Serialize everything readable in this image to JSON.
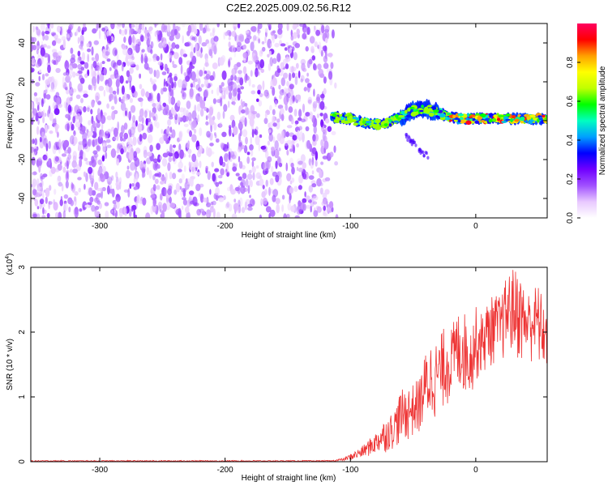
{
  "title": "C2E2.2025.009.02.56.R12",
  "chart_data": [
    {
      "type": "heatmap",
      "xlabel": "Height of straight line (km)",
      "ylabel": "Frequency (Hz)",
      "xlim": [
        -355,
        57
      ],
      "ylim": [
        -50,
        50
      ],
      "xticks": [
        -300,
        -200,
        -100,
        0
      ],
      "yticks": [
        -40,
        -20,
        0,
        20,
        40
      ],
      "grid": false,
      "colorbar": {
        "label": "Normalized spectral amplitude",
        "range": [
          0,
          1
        ],
        "ticks": [
          0.0,
          0.2,
          0.4,
          0.6,
          0.8
        ],
        "colormap": [
          "#ffffff",
          "#e8c8ff",
          "#a050ff",
          "#7000ff",
          "#0000ff",
          "#00a0ff",
          "#00ffc0",
          "#00ff00",
          "#c0ff00",
          "#ffff00",
          "#ffa000",
          "#ff0000",
          "#ff0060"
        ]
      },
      "regions": [
        {
          "x": [
            -355,
            -115
          ],
          "freq": [
            -50,
            50
          ],
          "amplitude": [
            0.05,
            0.18
          ],
          "pattern": "broadband noise"
        },
        {
          "x": [
            -115,
            57
          ],
          "freq": [
            -6,
            6
          ],
          "amplitude": [
            0.3,
            0.95
          ],
          "pattern": "narrow band near 0 Hz"
        }
      ],
      "band_centre": [
        {
          "x": -115,
          "f": 2
        },
        {
          "x": -100,
          "f": 1
        },
        {
          "x": -90,
          "f": -1
        },
        {
          "x": -80,
          "f": -2
        },
        {
          "x": -70,
          "f": -1
        },
        {
          "x": -60,
          "f": 2
        },
        {
          "x": -50,
          "f": 5
        },
        {
          "x": -40,
          "f": 6
        },
        {
          "x": -30,
          "f": 4
        },
        {
          "x": -20,
          "f": 2
        },
        {
          "x": -10,
          "f": 1
        },
        {
          "x": 0,
          "f": 1
        },
        {
          "x": 20,
          "f": 1
        },
        {
          "x": 40,
          "f": 1
        },
        {
          "x": 57,
          "f": 1
        }
      ]
    },
    {
      "type": "line",
      "xlabel": "Height of straight line (km)",
      "ylabel": "SNR (10 * v/v)",
      "y_multiplier": "(x10",
      "y_multiplier_exp": "4",
      "y_multiplier_close": ")",
      "xlim": [
        -355,
        57
      ],
      "ylim": [
        0,
        3
      ],
      "xticks": [
        -300,
        -200,
        -100,
        0
      ],
      "yticks": [
        0,
        1,
        2,
        3
      ],
      "grid": false,
      "color": "#ee3333",
      "series": [
        {
          "x": [
            -355,
            -300,
            -250,
            -200,
            -150,
            -115,
            -105,
            -100,
            -95,
            -90,
            -85,
            -80,
            -75,
            -70,
            -65,
            -60,
            -55,
            -50,
            -45,
            -40,
            -35,
            -30,
            -25,
            -20,
            -15,
            -10,
            -5,
            0,
            5,
            10,
            15,
            20,
            25,
            30,
            35,
            40,
            45,
            50,
            57
          ],
          "envelope_high": [
            0.02,
            0.02,
            0.02,
            0.02,
            0.02,
            0.02,
            0.06,
            0.12,
            0.18,
            0.25,
            0.35,
            0.45,
            0.6,
            0.7,
            0.8,
            1.1,
            1.15,
            1.2,
            1.3,
            1.7,
            1.9,
            1.85,
            2.1,
            2.05,
            2.3,
            2.4,
            2.0,
            2.4,
            2.3,
            2.5,
            2.6,
            2.55,
            2.9,
            3.0,
            2.95,
            2.6,
            2.7,
            2.75,
            2.3
          ],
          "envelope_low": [
            0.0,
            0.0,
            0.0,
            0.0,
            0.0,
            0.0,
            0.01,
            0.02,
            0.03,
            0.05,
            0.08,
            0.1,
            0.12,
            0.15,
            0.2,
            0.25,
            0.3,
            0.35,
            0.4,
            0.5,
            0.6,
            0.7,
            0.8,
            0.9,
            1.0,
            1.0,
            1.0,
            1.2,
            1.3,
            1.4,
            1.5,
            1.5,
            1.6,
            1.6,
            1.5,
            1.5,
            1.5,
            1.4,
            1.4
          ]
        }
      ]
    }
  ]
}
